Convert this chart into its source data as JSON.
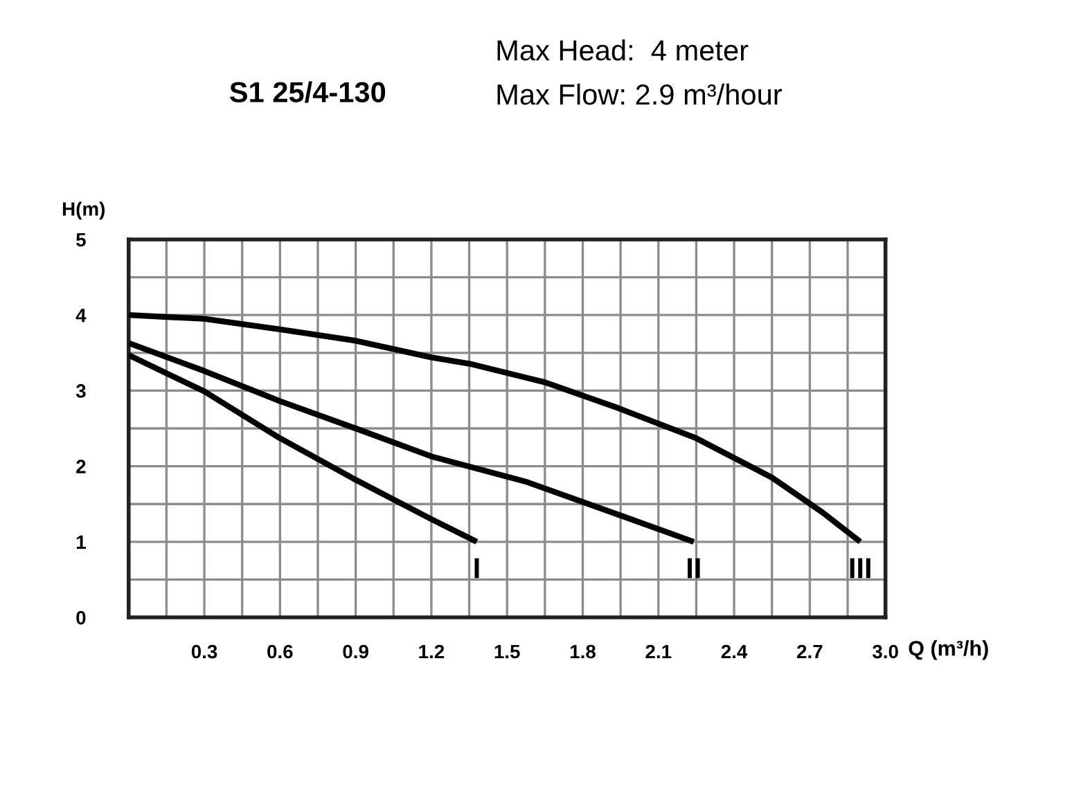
{
  "chart_data": {
    "type": "line",
    "title": "S1 25/4-130",
    "annotations": [
      "Max Head:  4 meter",
      "Max Flow: 2.9 m³/hour"
    ],
    "xlabel": "Q (m³/h)",
    "ylabel": "H(m)",
    "xlim": [
      0,
      3.0
    ],
    "ylim": [
      0,
      5
    ],
    "xticks": [
      {
        "value": 0.15,
        "label": null
      },
      0.3,
      {
        "value": 0.45,
        "label": null
      },
      0.6,
      {
        "value": 0.75,
        "label": null
      },
      0.9,
      {
        "value": 1.05,
        "label": null
      },
      1.2,
      {
        "value": 1.35,
        "label": null
      },
      1.5,
      {
        "value": 1.65,
        "label": null
      },
      1.8,
      {
        "value": 1.95,
        "label": null
      },
      2.1,
      {
        "value": 2.25,
        "label": null
      },
      2.4,
      {
        "value": 2.55,
        "label": null
      },
      2.7,
      {
        "value": 2.85,
        "label": null
      },
      {
        "value": 3,
        "label": "3.0"
      }
    ],
    "yticks": [
      0,
      {
        "value": 0.5,
        "label": null
      },
      1,
      {
        "value": 1.5,
        "label": null
      },
      2,
      {
        "value": 2.5,
        "label": null
      },
      3,
      {
        "value": 3.5,
        "label": null
      },
      4,
      {
        "value": 4.5,
        "label": null
      },
      5
    ],
    "grid": true,
    "legend": false,
    "marker": "none",
    "line_style": "solid",
    "series": [
      {
        "name": "I",
        "color": "#000000",
        "x": [
          0,
          0.3,
          0.6,
          0.9,
          1.2,
          1.38
        ],
        "values": [
          3.47,
          2.99,
          2.37,
          1.82,
          1.3,
          1.0
        ]
      },
      {
        "name": "II",
        "color": "#000000",
        "x": [
          0,
          0.3,
          0.6,
          0.9,
          1.2,
          1.58,
          1.94,
          2.24
        ],
        "values": [
          3.63,
          3.26,
          2.86,
          2.5,
          2.13,
          1.79,
          1.36,
          1.0
        ]
      },
      {
        "name": "III",
        "color": "#000000",
        "x": [
          0,
          0.3,
          0.6,
          0.9,
          1.2,
          1.36,
          1.65,
          1.94,
          2.25,
          2.55,
          2.75,
          2.9
        ],
        "values": [
          4.0,
          3.95,
          3.81,
          3.66,
          3.44,
          3.35,
          3.11,
          2.77,
          2.37,
          1.85,
          1.39,
          1.0
        ]
      }
    ]
  }
}
